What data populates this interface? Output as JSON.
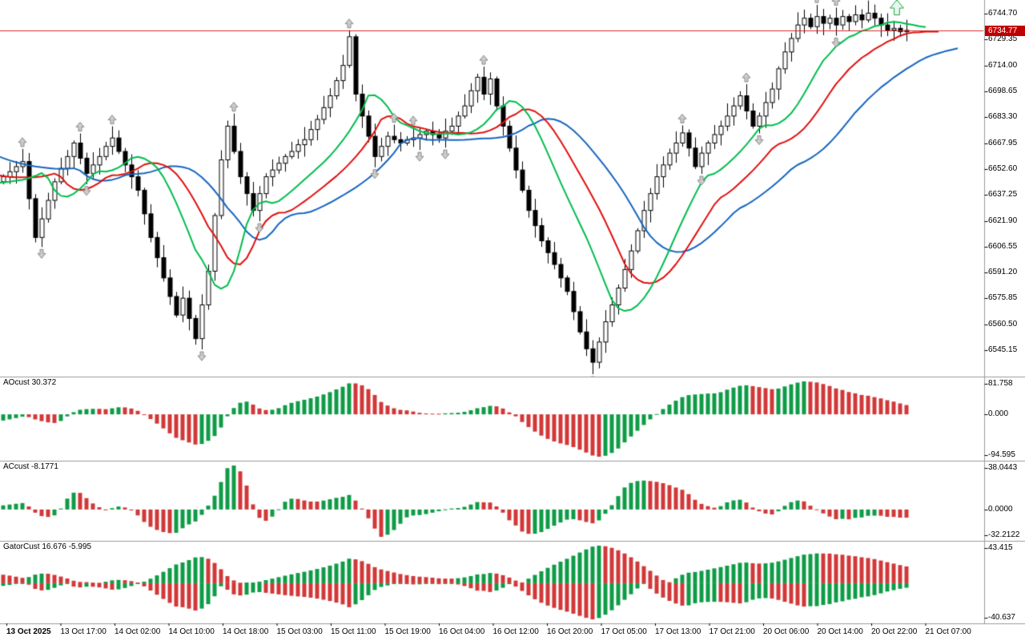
{
  "chart_data": {
    "type": "candlestick",
    "description": "MetaTrader-style price chart with Alligator moving averages, fractal arrows, a buy signal arrow and three indicator subwindows (Awesome Oscillator, Accelerator, Gator).",
    "bid": {
      "value": 6734.77,
      "label": "6734.77"
    },
    "price_axis": {
      "labels": [
        "6744.70",
        "6729.35",
        "6714.00",
        "6698.65",
        "6683.30",
        "6667.95",
        "6652.60",
        "6637.25",
        "6621.90",
        "6606.55",
        "6591.20",
        "6575.85",
        "6560.50",
        "6545.15"
      ],
      "top_price": 6752.8,
      "bottom_price": 6529.5
    },
    "candles": {
      "spacing_px": 8,
      "first_open": 6645,
      "closes": [
        6648,
        6651,
        6654,
        6657,
        6635,
        6612,
        6623,
        6634,
        6645,
        6653,
        6660,
        6668,
        6659,
        6650,
        6655,
        6660,
        6666,
        6671,
        6663,
        6655,
        6648,
        6640,
        6626,
        6612,
        6600,
        6588,
        6577,
        6566,
        6576,
        6564,
        6552,
        6572,
        6592,
        6625,
        6658,
        6678,
        6663,
        6648,
        6638,
        6628,
        6638,
        6648,
        6652,
        6656,
        6660,
        6663,
        6667,
        6670,
        6676,
        6682,
        6689,
        6696,
        6705,
        6714,
        6731,
        6697,
        6684,
        6672,
        6660,
        6666,
        6672,
        6670,
        6668,
        6670,
        6671,
        6673,
        6675,
        6673,
        6671,
        6675,
        6678,
        6684,
        6690,
        6699,
        6707,
        6697,
        6706,
        6690,
        6678,
        6665,
        6652,
        6640,
        6628,
        6619,
        6610,
        6603,
        6596,
        6588,
        6580,
        6568,
        6556,
        6546,
        6538,
        6550,
        6562,
        6572,
        6582,
        6593,
        6604,
        6616,
        6628,
        6638,
        6648,
        6655,
        6662,
        6668,
        6674,
        6665,
        6654,
        6662,
        6668,
        6673,
        6678,
        6684,
        6690,
        6696,
        6687,
        6678,
        6684,
        6692,
        6700,
        6712,
        6722,
        6730,
        6738,
        6742,
        6737,
        6743,
        6739,
        6742,
        6738,
        6743,
        6740,
        6744,
        6741,
        6745,
        6742,
        6738,
        6735,
        6736,
        6734,
        6734.8
      ],
      "up_style": "hollow",
      "down_style": "filled"
    },
    "warmup_closes": [
      6700,
      6698,
      6695,
      6693,
      6690,
      6688,
      6685,
      6682,
      6680,
      6677,
      6674,
      6671,
      6668,
      6665,
      6662,
      6659,
      6656,
      6653,
      6650,
      6648,
      6646,
      6644,
      6642,
      6641,
      6640,
      6640,
      6641,
      6642,
      6643,
      6644,
      6645,
      6646,
      6647,
      6648
    ],
    "moving_averages": [
      {
        "name": "alligator-lips",
        "period": 5,
        "shift": 3,
        "color": "#00bd4e"
      },
      {
        "name": "alligator-teeth",
        "period": 8,
        "shift": 5,
        "color": "#e01010"
      },
      {
        "name": "alligator-jaw",
        "period": 13,
        "shift": 8,
        "color": "#1565c0"
      }
    ],
    "signal_arrow": {
      "index": 139,
      "direction": "up",
      "color": "#27a348"
    },
    "panes": [
      {
        "id": "ao",
        "label": "AOcust 30.372",
        "axis_labels": [
          "81.758",
          "0.000",
          "-94.595"
        ]
      },
      {
        "id": "ac",
        "label": "ACcust -8.1771",
        "axis_labels": [
          "38.0443",
          "0.0000",
          "-32.2122"
        ]
      },
      {
        "id": "gator",
        "label": "GatorCust 16.676 -5.995",
        "axis_labels": [
          "43.415",
          "-40.637"
        ]
      }
    ],
    "time_axis": {
      "labels": [
        "13 Oct 2025",
        "13 Oct 17:00",
        "14 Oct 02:00",
        "14 Oct 10:00",
        "14 Oct 18:00",
        "15 Oct 03:00",
        "15 Oct 11:00",
        "15 Oct 19:00",
        "16 Oct 04:00",
        "16 Oct 12:00",
        "16 Oct 20:00",
        "17 Oct 05:00",
        "17 Oct 13:00",
        "17 Oct 21:00",
        "20 Oct 06:00",
        "20 Oct 14:00",
        "20 Oct 22:00",
        "21 Oct 07:00"
      ]
    },
    "colors": {
      "background": "#ffffff",
      "candle_up_fill": "#ffffff",
      "candle_down_fill": "#000000",
      "candle_border": "#000000",
      "histogram_up_green": "#0e9c46",
      "histogram_down_red": "#d23838",
      "bid_line_red": "#d92b2b",
      "bid_badge_bg": "#c00000",
      "fractal_arrow_fill": "#cccccc",
      "fractal_arrow_stroke": "#8a8a8a",
      "pane_border_gray": "#9a9a9a",
      "axis_text": "#000000"
    }
  }
}
